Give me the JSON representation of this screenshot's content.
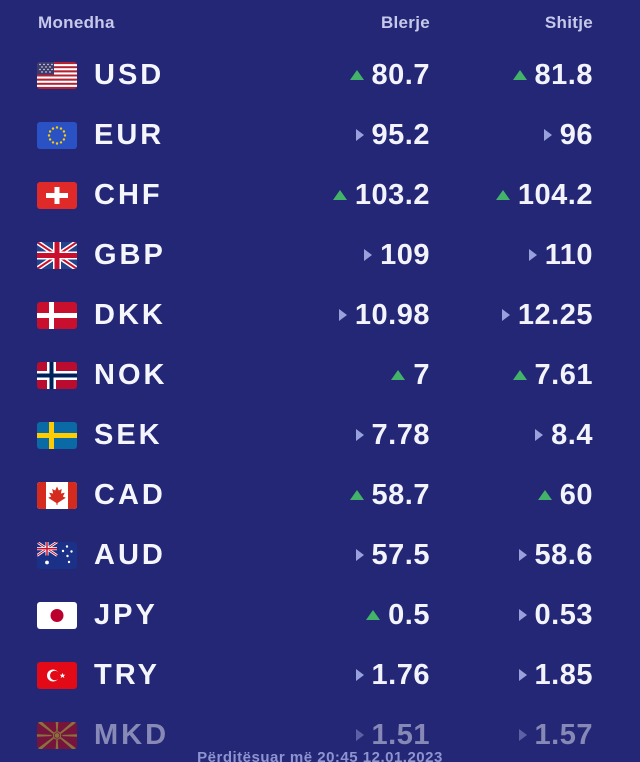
{
  "header": {
    "currency_label": "Monedha",
    "buy_label": "Blerje",
    "sell_label": "Shitje"
  },
  "footer": {
    "updated_text": "Përditësuar më 20:45  12.01.2023"
  },
  "colors": {
    "background": "#232776",
    "trend_up_green": "#43b36a",
    "trend_steady_lavender": "#99a1dd",
    "value_text": "#f2f3fb",
    "header_text": "#c6c9e9"
  },
  "table": {
    "rows": [
      {
        "code": "USD",
        "flag": "usd",
        "dimmed": false,
        "buy": {
          "trend": "up",
          "value": "80.7"
        },
        "sell": {
          "trend": "up",
          "value": "81.8"
        }
      },
      {
        "code": "EUR",
        "flag": "eur",
        "dimmed": false,
        "buy": {
          "trend": "steady",
          "value": "95.2"
        },
        "sell": {
          "trend": "steady",
          "value": "96"
        }
      },
      {
        "code": "CHF",
        "flag": "chf",
        "dimmed": false,
        "buy": {
          "trend": "up",
          "value": "103.2"
        },
        "sell": {
          "trend": "up",
          "value": "104.2"
        }
      },
      {
        "code": "GBP",
        "flag": "gbp",
        "dimmed": false,
        "buy": {
          "trend": "steady",
          "value": "109"
        },
        "sell": {
          "trend": "steady",
          "value": "110"
        }
      },
      {
        "code": "DKK",
        "flag": "dkk",
        "dimmed": false,
        "buy": {
          "trend": "steady",
          "value": "10.98"
        },
        "sell": {
          "trend": "steady",
          "value": "12.25"
        }
      },
      {
        "code": "NOK",
        "flag": "nok",
        "dimmed": false,
        "buy": {
          "trend": "up",
          "value": "7"
        },
        "sell": {
          "trend": "up",
          "value": "7.61"
        }
      },
      {
        "code": "SEK",
        "flag": "sek",
        "dimmed": false,
        "buy": {
          "trend": "steady",
          "value": "7.78"
        },
        "sell": {
          "trend": "steady",
          "value": "8.4"
        }
      },
      {
        "code": "CAD",
        "flag": "cad",
        "dimmed": false,
        "buy": {
          "trend": "up",
          "value": "58.7"
        },
        "sell": {
          "trend": "up",
          "value": "60"
        }
      },
      {
        "code": "AUD",
        "flag": "aud",
        "dimmed": false,
        "buy": {
          "trend": "steady",
          "value": "57.5"
        },
        "sell": {
          "trend": "steady",
          "value": "58.6"
        }
      },
      {
        "code": "JPY",
        "flag": "jpy",
        "dimmed": false,
        "buy": {
          "trend": "up",
          "value": "0.5"
        },
        "sell": {
          "trend": "steady",
          "value": "0.53"
        }
      },
      {
        "code": "TRY",
        "flag": "try",
        "dimmed": false,
        "buy": {
          "trend": "steady",
          "value": "1.76"
        },
        "sell": {
          "trend": "steady",
          "value": "1.85"
        }
      },
      {
        "code": "MKD",
        "flag": "mkd",
        "dimmed": true,
        "buy": {
          "trend": "steady",
          "value": "1.51"
        },
        "sell": {
          "trend": "steady",
          "value": "1.57"
        }
      }
    ]
  }
}
